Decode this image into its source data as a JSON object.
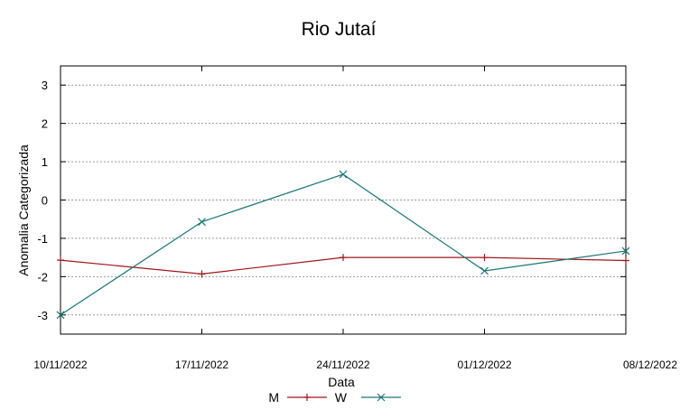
{
  "chart_data": {
    "type": "line",
    "title": "Rio Jutaí",
    "xlabel": "Data",
    "ylabel": "Anomalia Categorizada",
    "categories": [
      "10/11/2022",
      "17/11/2022",
      "24/11/2022",
      "01/12/2022",
      "08/12/2022"
    ],
    "ylim": [
      -3.5,
      3.5
    ],
    "yticks": [
      -3,
      -2,
      -1,
      0,
      1,
      2,
      3
    ],
    "grid": true,
    "legend_position": "bottom-center",
    "series": [
      {
        "name": "M",
        "color": "#a0161b",
        "marker": "plus",
        "values": [
          -1.57,
          -1.93,
          -1.5,
          -1.5,
          -1.58
        ]
      },
      {
        "name": "W",
        "color": "#1b7575",
        "marker": "cross",
        "values": [
          -3.0,
          -0.57,
          0.67,
          -1.85,
          -1.33
        ]
      }
    ]
  }
}
